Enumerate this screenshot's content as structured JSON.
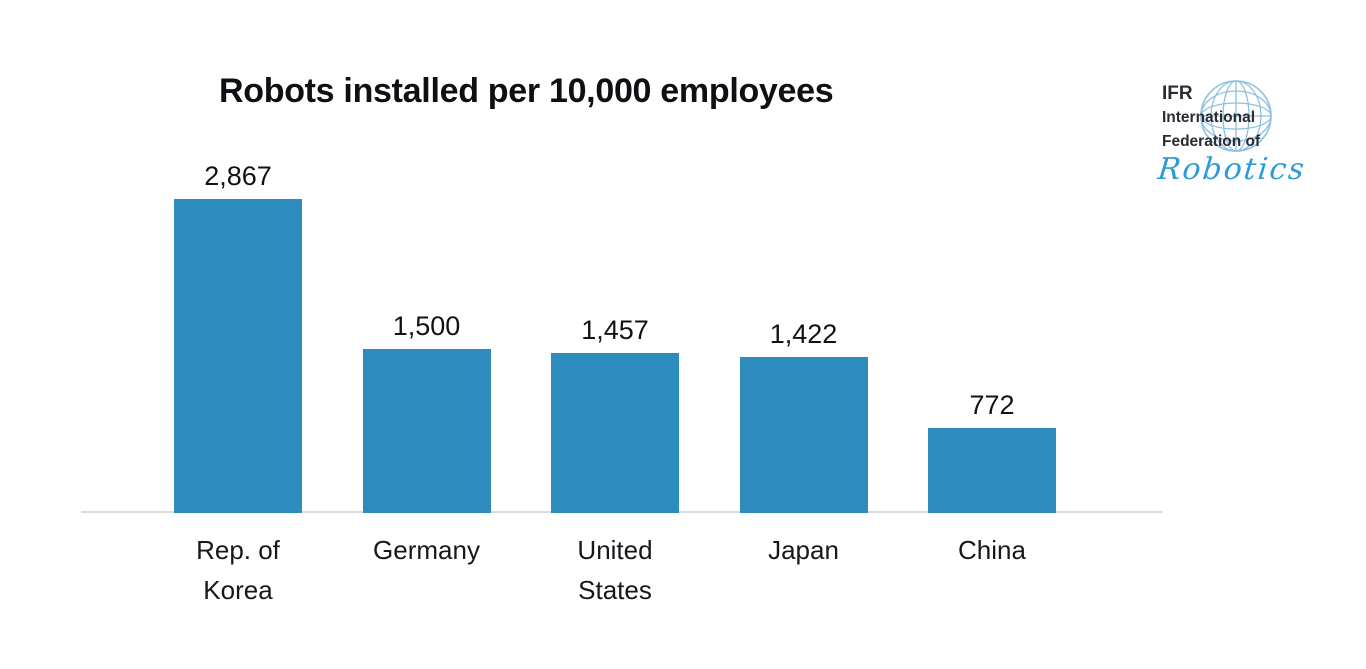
{
  "chart_data": {
    "type": "bar",
    "title": "Robots installed per 10,000 employees",
    "categories": [
      "Rep. of\nKorea",
      "Germany",
      "United\nStates",
      "Japan",
      "China"
    ],
    "values": [
      2867,
      1500,
      1457,
      1422,
      772
    ],
    "value_labels": [
      "2,867",
      "1,500",
      "1,457",
      "1,422",
      "772"
    ],
    "xlabel": "",
    "ylabel": "",
    "ylim": [
      0,
      3000
    ],
    "grid": false,
    "legend": "none",
    "bar_color": "#2E8BBD",
    "baseline_color": "#DCDCDC",
    "label_color": "#121212"
  },
  "logo": {
    "line1": "IFR",
    "line2": "International",
    "line3": "Federation of",
    "script": "Robotics",
    "text_color": "#2B2B33",
    "globe_color": "#8FC1DE",
    "script_color": "#2B9CD8"
  }
}
